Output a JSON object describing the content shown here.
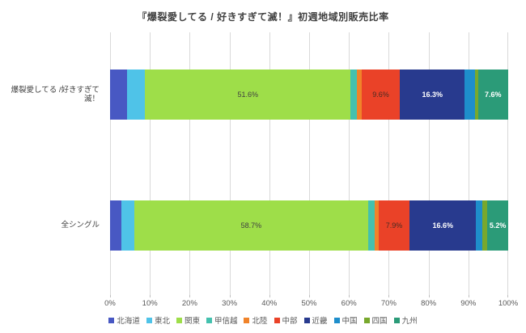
{
  "title": "『爆裂愛してる / 好きすぎて滅！』初週地域別販売比率",
  "chart_data": {
    "type": "bar",
    "orientation": "horizontal",
    "stacked": true,
    "unit": "%",
    "xlim": [
      0,
      100
    ],
    "x_ticks": [
      "0%",
      "10%",
      "20%",
      "30%",
      "40%",
      "50%",
      "60%",
      "70%",
      "80%",
      "90%",
      "100%"
    ],
    "grid": true,
    "legend_position": "bottom",
    "categories": [
      "爆裂愛してる /好きすぎて滅！",
      "全シングル"
    ],
    "series": [
      {
        "name": "北海道",
        "color": "#4858c3",
        "values": [
          4.2,
          2.8
        ],
        "labels": [
          "",
          ""
        ],
        "label_color": "#404040"
      },
      {
        "name": "東北",
        "color": "#4fc3e8",
        "values": [
          4.6,
          3.3
        ],
        "labels": [
          "",
          ""
        ],
        "label_color": "#404040"
      },
      {
        "name": "関東",
        "color": "#9ede49",
        "values": [
          51.6,
          58.7
        ],
        "labels": [
          "51.6%",
          "58.7%"
        ],
        "label_color": "#404040"
      },
      {
        "name": "甲信越",
        "color": "#44c1ae",
        "values": [
          1.5,
          1.6
        ],
        "labels": [
          "",
          ""
        ],
        "label_color": "#404040"
      },
      {
        "name": "北陸",
        "color": "#f0832a",
        "values": [
          1.3,
          1.0
        ],
        "labels": [
          "",
          ""
        ],
        "label_color": "#404040"
      },
      {
        "name": "中部",
        "color": "#ea4228",
        "values": [
          9.6,
          7.9
        ],
        "labels": [
          "9.6%",
          "7.9%"
        ],
        "label_color": "#4a2b24"
      },
      {
        "name": "近畿",
        "color": "#283a8e",
        "values": [
          16.3,
          16.6
        ],
        "labels": [
          "16.3%",
          "16.6%"
        ],
        "label_color": "#ffffff"
      },
      {
        "name": "中国",
        "color": "#1e8ecb",
        "values": [
          2.5,
          1.7
        ],
        "labels": [
          "",
          ""
        ],
        "label_color": "#ffffff"
      },
      {
        "name": "四国",
        "color": "#78a82d",
        "values": [
          0.8,
          1.2
        ],
        "labels": [
          "",
          ""
        ],
        "label_color": "#404040"
      },
      {
        "name": "九州",
        "color": "#2b9b78",
        "values": [
          7.6,
          5.2
        ],
        "labels": [
          "7.6%",
          "5.2%"
        ],
        "label_color": "#ffffff"
      }
    ]
  }
}
